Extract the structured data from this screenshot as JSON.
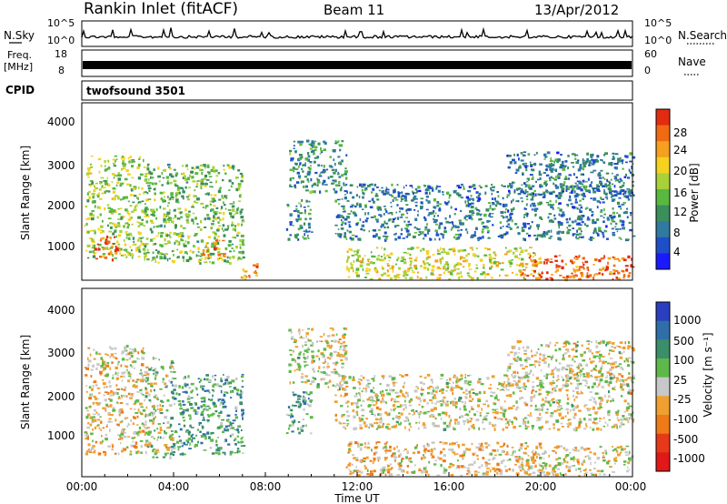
{
  "header": {
    "station": "Rankin Inlet (fitACF)",
    "beam": "Beam 11",
    "date": "13/Apr/2012"
  },
  "noise_panel": {
    "left_label": "N.Sky",
    "right_label": "N.Search",
    "left_ticks": [
      "10^5",
      "10^0"
    ],
    "right_ticks": [
      "10^5",
      "10^0"
    ]
  },
  "freq_panel": {
    "left_label_line1": "Freq.",
    "left_label_line2": "[MHz]",
    "right_label": "Nave",
    "left_ticks": [
      "18",
      "8"
    ],
    "right_ticks": [
      "60",
      "0"
    ]
  },
  "cpid": {
    "label": "CPID",
    "program": "twofsound 3501"
  },
  "power_panel": {
    "ylabel": "Slant Range [km]",
    "yticks": [
      "4000",
      "3000",
      "2000",
      "1000"
    ],
    "colorbar_label": "Power [dB]",
    "colorbar_ticks": [
      "28",
      "24",
      "20",
      "16",
      "12",
      "8",
      "4"
    ],
    "colors": [
      "#1a1aff",
      "#1f4fc8",
      "#2f7a9e",
      "#3a8f5a",
      "#59b83f",
      "#a8d13a",
      "#f5d21e",
      "#f5a01e",
      "#f06a12",
      "#e32b12"
    ]
  },
  "velocity_panel": {
    "ylabel": "Slant Range [km]",
    "yticks": [
      "4000",
      "3000",
      "2000",
      "1000"
    ],
    "colorbar_label": "Velocity [m s⁻¹]",
    "colorbar_ticks": [
      "1000",
      "500",
      "100",
      "25",
      "-25",
      "-100",
      "-500",
      "-1000"
    ],
    "colors": [
      "#2a3fbf",
      "#2f6fa8",
      "#3a8f6a",
      "#5fb84a",
      "#c8c8c8",
      "#f0a030",
      "#ef7a18",
      "#e6391a",
      "#e01818"
    ]
  },
  "xaxis": {
    "label": "Time UT",
    "ticks": [
      "00:00",
      "04:00",
      "08:00",
      "12:00",
      "16:00",
      "20:00",
      "00:00"
    ]
  },
  "chart_data": [
    {
      "type": "heatmap",
      "title": "Power",
      "x_range": [
        "00:00",
        "24:00"
      ],
      "ylim": [
        180,
        4600
      ],
      "ylabel": "Slant Range [km]",
      "colorbar": "Power [dB]",
      "colorbar_range": [
        0,
        30
      ],
      "regions": [
        {
          "x": [
            0.1,
            2.8
          ],
          "y": [
            700,
            3300
          ],
          "value": 16
        },
        {
          "x": [
            0.5,
            1.5
          ],
          "y": [
            700,
            1300
          ],
          "value": 27
        },
        {
          "x": [
            2.7,
            7.0
          ],
          "y": [
            600,
            3100
          ],
          "value": 14
        },
        {
          "x": [
            5.2,
            6.2
          ],
          "y": [
            700,
            1200
          ],
          "value": 25
        },
        {
          "x": [
            6.8,
            7.6
          ],
          "y": [
            200,
            600
          ],
          "value": 22
        },
        {
          "x": [
            8.9,
            10.0
          ],
          "y": [
            1200,
            2200
          ],
          "value": 10
        },
        {
          "x": [
            9.0,
            11.5
          ],
          "y": [
            2400,
            3700
          ],
          "value": 10
        },
        {
          "x": [
            11.5,
            20.0
          ],
          "y": [
            200,
            1000
          ],
          "value": 18
        },
        {
          "x": [
            11.0,
            24.0
          ],
          "y": [
            1200,
            2600
          ],
          "value": 8
        },
        {
          "x": [
            19.0,
            24.0
          ],
          "y": [
            200,
            800
          ],
          "value": 26
        },
        {
          "x": [
            18.5,
            24.0
          ],
          "y": [
            2300,
            3400
          ],
          "value": 8
        }
      ]
    },
    {
      "type": "heatmap",
      "title": "Velocity",
      "x_range": [
        "00:00",
        "24:00"
      ],
      "ylim": [
        180,
        4600
      ],
      "ylabel": "Slant Range [km]",
      "colorbar": "Velocity [m s⁻¹]",
      "colorbar_range": [
        -1000,
        1000
      ],
      "regions": [
        {
          "x": [
            0.1,
            2.8
          ],
          "y": [
            700,
            3300
          ],
          "value": -80
        },
        {
          "x": [
            2.7,
            4.0
          ],
          "y": [
            600,
            3000
          ],
          "value": 120
        },
        {
          "x": [
            3.8,
            7.0
          ],
          "y": [
            700,
            2600
          ],
          "value": 400
        },
        {
          "x": [
            8.9,
            10.0
          ],
          "y": [
            1200,
            2200
          ],
          "value": 300
        },
        {
          "x": [
            9.0,
            11.5
          ],
          "y": [
            2300,
            3700
          ],
          "value": 0
        },
        {
          "x": [
            11.5,
            20.0
          ],
          "y": [
            200,
            1000
          ],
          "value": -150
        },
        {
          "x": [
            11.0,
            24.0
          ],
          "y": [
            1300,
            2600
          ],
          "value": 0
        },
        {
          "x": [
            19.0,
            24.0
          ],
          "y": [
            200,
            900
          ],
          "value": -60
        },
        {
          "x": [
            18.5,
            24.0
          ],
          "y": [
            2300,
            3400
          ],
          "value": 0
        }
      ]
    }
  ]
}
